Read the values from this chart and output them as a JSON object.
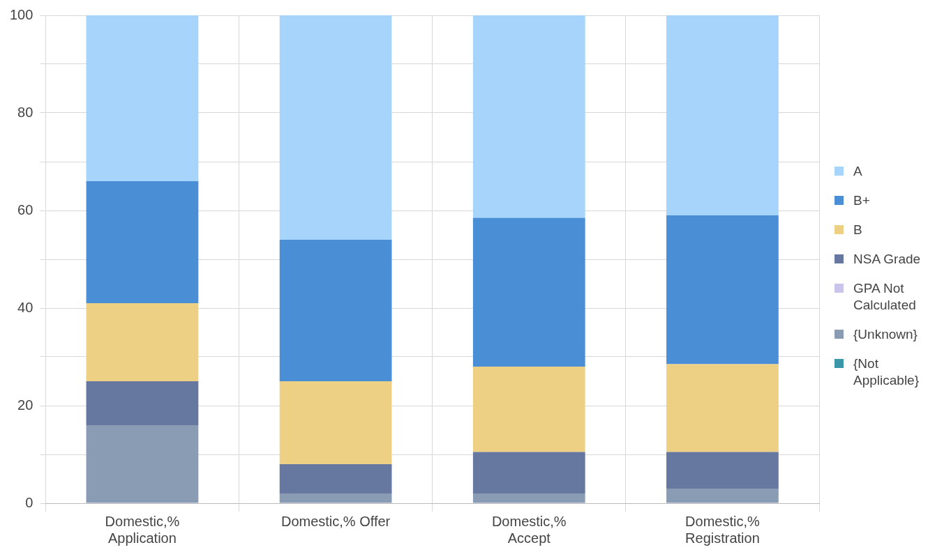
{
  "chart_data": {
    "type": "bar",
    "stacked": true,
    "categories": [
      "Domestic,%\nApplication",
      "Domestic,% Offer",
      "Domestic,%\nAccept",
      "Domestic,%\nRegistration"
    ],
    "series": [
      {
        "name": "{Not Applicable}",
        "color": "#3b97a8",
        "values": [
          0,
          0,
          0,
          0
        ]
      },
      {
        "name": "{Unknown}",
        "color": "#8a9cb3",
        "values": [
          16,
          2,
          2,
          3
        ]
      },
      {
        "name": "GPA Not Calculated",
        "color": "#c9c5ea",
        "values": [
          0,
          0,
          0,
          0
        ]
      },
      {
        "name": "NSA Grade",
        "color": "#66789f",
        "values": [
          9,
          6,
          8.5,
          7.5
        ]
      },
      {
        "name": "B",
        "color": "#edd083",
        "values": [
          16,
          17,
          17.5,
          18
        ]
      },
      {
        "name": "B+",
        "color": "#4a8fd6",
        "values": [
          25,
          29,
          30.5,
          30.5
        ]
      },
      {
        "name": "A",
        "color": "#a6d4fa",
        "values": [
          34,
          46,
          41.5,
          41
        ]
      }
    ],
    "ylim": [
      0,
      100
    ],
    "yticks": [
      0,
      {
        "value": 10,
        "label": null
      },
      20,
      {
        "value": 30,
        "label": null
      },
      40,
      {
        "value": 50,
        "label": null
      },
      60,
      {
        "value": 70,
        "label": null
      },
      80,
      {
        "value": 90,
        "label": null
      },
      100
    ],
    "grid": true,
    "legend": "right"
  }
}
